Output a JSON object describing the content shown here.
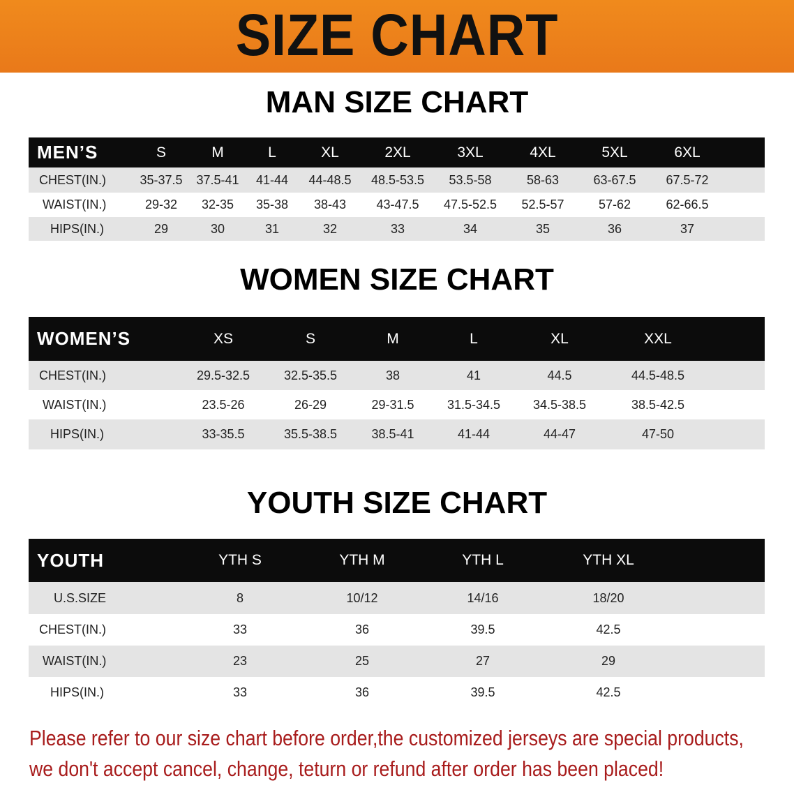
{
  "banner": {
    "title": "SIZE CHART",
    "color": "#ec821b"
  },
  "men": {
    "title": "MAN SIZE CHART",
    "header": [
      "MEN’S",
      "S",
      "M",
      "L",
      "XL",
      "2XL",
      "3XL",
      "4XL",
      "5XL",
      "6XL"
    ],
    "rows": [
      [
        "CHEST(IN.)",
        "35-37.5",
        "37.5-41",
        "41-44",
        "44-48.5",
        "48.5-53.5",
        "53.5-58",
        "58-63",
        "63-67.5",
        "67.5-72"
      ],
      [
        "WAIST(IN.)",
        "29-32",
        "32-35",
        "35-38",
        "38-43",
        "43-47.5",
        "47.5-52.5",
        "52.5-57",
        "57-62",
        "62-66.5"
      ],
      [
        "HIPS(IN.)",
        "29",
        "30",
        "31",
        "32",
        "33",
        "34",
        "35",
        "36",
        "37"
      ]
    ]
  },
  "women": {
    "title": "WOMEN SIZE CHART",
    "header": [
      "WOMEN’S",
      "XS",
      "S",
      "M",
      "L",
      "XL",
      "XXL"
    ],
    "rows": [
      [
        "CHEST(IN.)",
        "29.5-32.5",
        "32.5-35.5",
        "38",
        "41",
        "44.5",
        "44.5-48.5"
      ],
      [
        "WAIST(IN.)",
        "23.5-26",
        "26-29",
        "29-31.5",
        "31.5-34.5",
        "34.5-38.5",
        "38.5-42.5"
      ],
      [
        "HIPS(IN.)",
        "33-35.5",
        "35.5-38.5",
        "38.5-41",
        "41-44",
        "44-47",
        "47-50"
      ]
    ]
  },
  "youth": {
    "title": "YOUTH SIZE CHART",
    "header": [
      "YOUTH",
      "YTH S",
      "YTH M",
      "YTH L",
      "YTH XL"
    ],
    "rows": [
      [
        "U.S.SIZE",
        "8",
        "10/12",
        "14/16",
        "18/20"
      ],
      [
        "CHEST(IN.)",
        "33",
        "36",
        "39.5",
        "42.5"
      ],
      [
        "WAIST(IN.)",
        "23",
        "25",
        "27",
        "29"
      ],
      [
        "HIPS(IN.)",
        "33",
        "36",
        "39.5",
        "42.5"
      ]
    ]
  },
  "note": {
    "line1": "Please refer to our size chart before order,the customized jerseys are special products,",
    "line2": "we don't accept cancel, change, teturn or refund after order has been placed!",
    "color": "#a81c1c"
  }
}
